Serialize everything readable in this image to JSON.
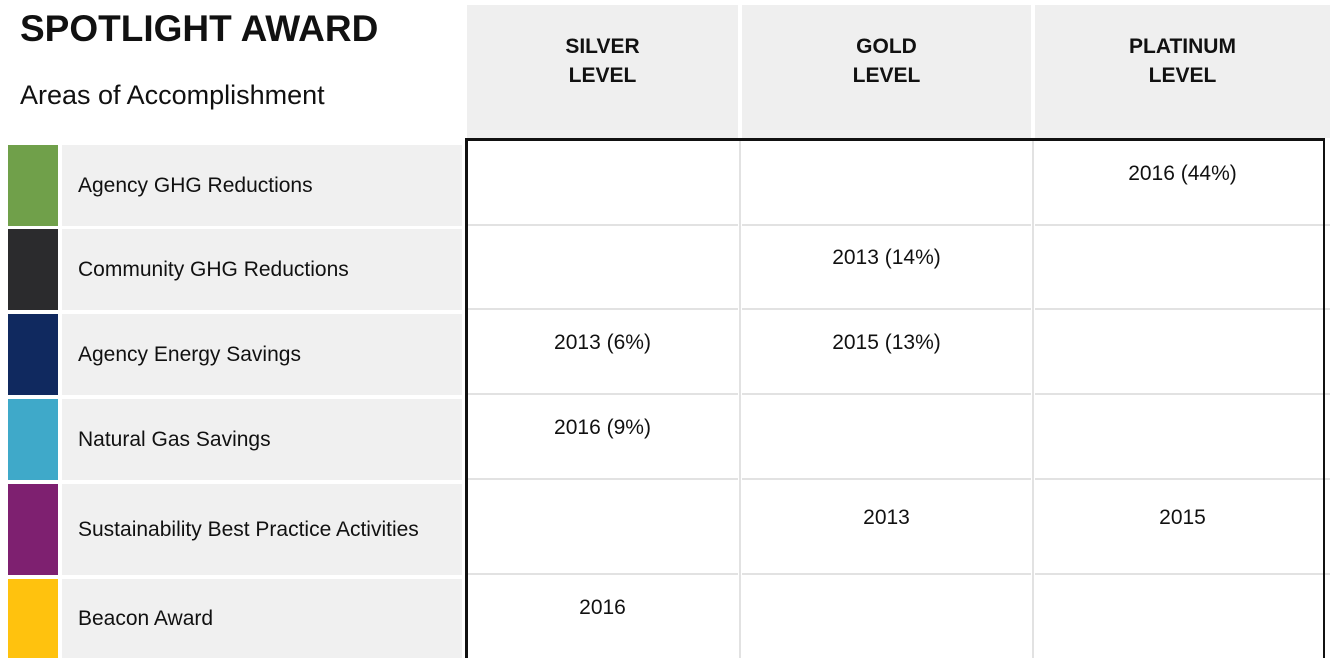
{
  "header": {
    "title": "SPOTLIGHT AWARD",
    "subtitle": "Areas of Accomplishment"
  },
  "columns": [
    "SILVER LEVEL",
    "GOLD LEVEL",
    "PLATINUM LEVEL"
  ],
  "rows": [
    {
      "label": "Agency GHG Reductions",
      "color": "#70a04a",
      "cells": [
        null,
        null,
        "2016 (44%)"
      ]
    },
    {
      "label": "Community GHG Reductions",
      "color": "#2b2b2d",
      "cells": [
        null,
        "2013 (14%)",
        null
      ]
    },
    {
      "label": "Agency Energy Savings",
      "color": "#10295f",
      "cells": [
        "2013 (6%)",
        "2015 (13%)",
        null
      ]
    },
    {
      "label": "Natural Gas Savings",
      "color": "#3fa9c9",
      "cells": [
        "2016 (9%)",
        null,
        null
      ]
    },
    {
      "label": "Sustainability Best Practice Activities",
      "color": "#7e2070",
      "cells": [
        null,
        "2013",
        "2015"
      ]
    },
    {
      "label": "Beacon Award",
      "color": "#ffc20e",
      "cells": [
        "2016",
        null,
        null
      ]
    }
  ]
}
